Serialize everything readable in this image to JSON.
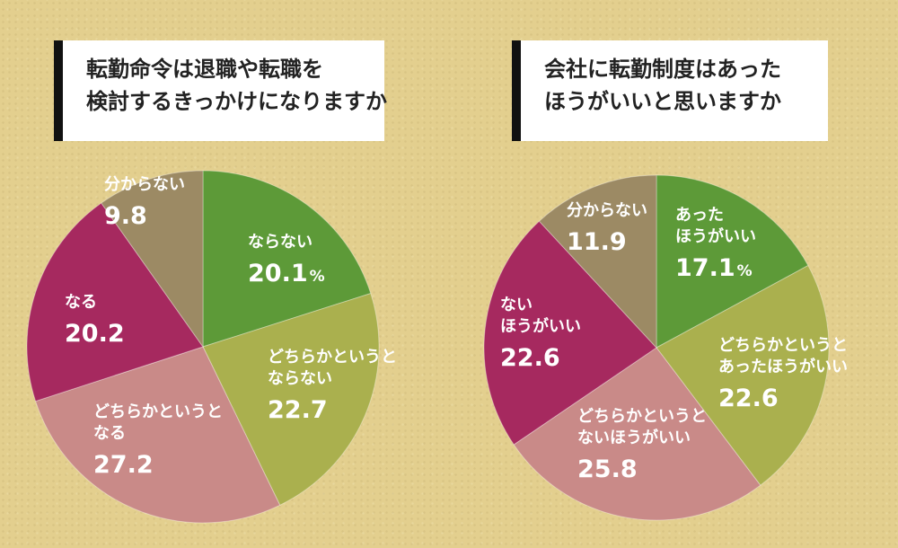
{
  "chart_data": [
    {
      "type": "pie",
      "title_lines": [
        "転勤命令は退職や転職を",
        "検討するきっかけになりますか"
      ],
      "slices": [
        {
          "label_lines": [
            "ならない"
          ],
          "value": 20.1,
          "value_text": "20.1",
          "unit": "%",
          "color": "#5d9a38"
        },
        {
          "label_lines": [
            "どちらかというと",
            "ならない"
          ],
          "value": 22.7,
          "value_text": "22.7",
          "color": "#aab04e"
        },
        {
          "label_lines": [
            "どちらかというと",
            "なる"
          ],
          "value": 27.2,
          "value_text": "27.2",
          "color": "#c98a88"
        },
        {
          "label_lines": [
            "なる"
          ],
          "value": 20.2,
          "value_text": "20.2",
          "color": "#a6295f"
        },
        {
          "label_lines": [
            "分からない"
          ],
          "value": 9.8,
          "value_text": "9.8",
          "color": "#9c8a64"
        }
      ]
    },
    {
      "type": "pie",
      "title_lines": [
        "会社に転勤制度はあった",
        "ほうがいいと思いますか"
      ],
      "slices": [
        {
          "label_lines": [
            "あった",
            "ほうがいい"
          ],
          "value": 17.1,
          "value_text": "17.1",
          "unit": "%",
          "color": "#5d9a38"
        },
        {
          "label_lines": [
            "どちらかというと",
            "あったほうがいい"
          ],
          "value": 22.6,
          "value_text": "22.6",
          "color": "#aab04e"
        },
        {
          "label_lines": [
            "どちらかというと",
            "ないほうがいい"
          ],
          "value": 25.8,
          "value_text": "25.8",
          "color": "#c98a88"
        },
        {
          "label_lines": [
            "ない",
            "ほうがいい"
          ],
          "value": 22.6,
          "value_text": "22.6",
          "color": "#a6295f"
        },
        {
          "label_lines": [
            "分からない"
          ],
          "value": 11.9,
          "value_text": "11.9",
          "color": "#9c8a64"
        }
      ]
    }
  ]
}
